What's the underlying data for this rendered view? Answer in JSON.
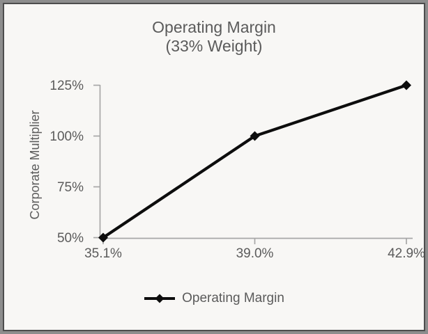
{
  "chart_data": {
    "type": "line",
    "title_lines": [
      "Operating Margin",
      "(33% Weight)"
    ],
    "ylabel": "Corporate Multiplier",
    "xlabel": "",
    "categories": [
      "35.1%",
      "39.0%",
      "42.9%"
    ],
    "series": [
      {
        "name": "Operating Margin",
        "values": [
          50,
          100,
          125
        ],
        "marker": "diamond"
      }
    ],
    "y_ticks": [
      {
        "value": 50,
        "label": "50%"
      },
      {
        "value": 75,
        "label": "75%"
      },
      {
        "value": 100,
        "label": "100%"
      },
      {
        "value": 125,
        "label": "125%"
      }
    ],
    "ylim": [
      50,
      125
    ],
    "grid": false,
    "legend_position": "bottom",
    "colors": {
      "line": "#0d0d0d",
      "axis": "#a7a7a7",
      "text": "#5b5b5b",
      "background": "#f8f7f5",
      "frame_outer": "#8d8d8d",
      "frame_inner": "#4d4d4d"
    }
  }
}
